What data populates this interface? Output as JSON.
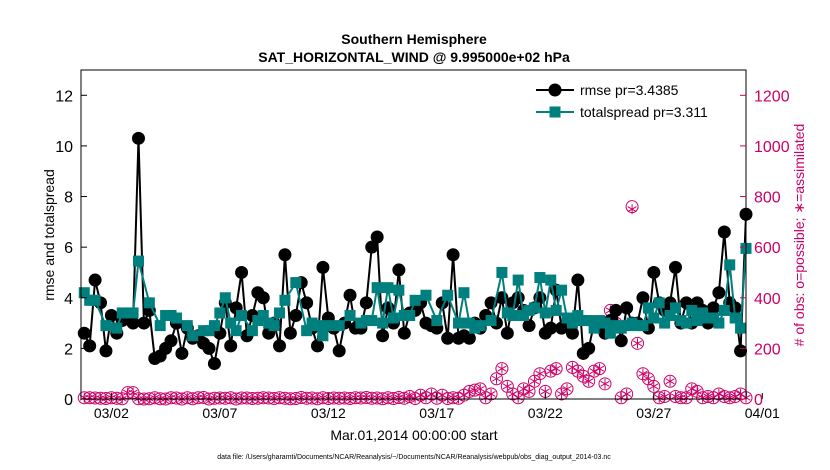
{
  "chart_data": {
    "type": "line",
    "title": "Southern Hemisphere",
    "subtitle": "SAT_HORIZONTAL_WIND @ 9.995000e+02 hPa",
    "xlabel": "Mar.01,2014 00:00:00 start",
    "ylabel_left": "rmse and totalspread",
    "ylabel_right": "# of obs: o=possible; ∗=assimilated",
    "footnote": "data file: /Users/gharamti/Documents/NCAR/Reanalysis/~/Documents/NCAR/Reanalysis/webpub/obs_diag_output_2014-03.nc",
    "xlim": [
      0.6,
      31.25
    ],
    "ylim_left": [
      0,
      13
    ],
    "ylim_right": [
      0,
      1300
    ],
    "xticks": [
      {
        "pos": 2,
        "label": "03/02"
      },
      {
        "pos": 7,
        "label": "03/07"
      },
      {
        "pos": 12,
        "label": "03/12"
      },
      {
        "pos": 17,
        "label": "03/17"
      },
      {
        "pos": 22,
        "label": "03/22"
      },
      {
        "pos": 27,
        "label": "03/27"
      },
      {
        "pos": 32,
        "label": "04/01"
      }
    ],
    "yticks_left": [
      0,
      2,
      4,
      6,
      8,
      10,
      12
    ],
    "yticks_right": [
      0,
      200,
      400,
      600,
      800,
      1000,
      1200
    ],
    "grid": false,
    "legend_position": "top-right",
    "colors": {
      "rmse": "#000000",
      "totalspread": "#007f7f",
      "obs": "#cc0066"
    },
    "series": [
      {
        "name": "rmse pr=3.4385",
        "marker": "circle",
        "axis": "left",
        "x": [
          0.75,
          1.0,
          1.25,
          1.5,
          1.75,
          2.0,
          2.25,
          2.5,
          2.75,
          3.0,
          3.25,
          3.5,
          3.75,
          4.0,
          4.25,
          4.5,
          4.75,
          5.0,
          5.25,
          5.5,
          5.75,
          6.0,
          6.25,
          6.5,
          6.75,
          7.0,
          7.25,
          7.5,
          7.75,
          8.0,
          8.25,
          8.5,
          8.75,
          9.0,
          9.25,
          9.5,
          9.75,
          10.0,
          10.25,
          10.5,
          10.75,
          11.0,
          11.25,
          11.5,
          11.75,
          12.0,
          12.25,
          12.5,
          12.75,
          13.0,
          13.25,
          13.5,
          13.75,
          14.0,
          14.25,
          14.5,
          14.75,
          15.0,
          15.25,
          15.5,
          15.75,
          16.0,
          16.25,
          16.5,
          16.75,
          17.0,
          17.25,
          17.5,
          17.75,
          18.0,
          18.25,
          18.5,
          18.75,
          19.0,
          19.25,
          19.5,
          19.75,
          20.0,
          20.25,
          20.5,
          20.75,
          21.0,
          21.25,
          21.5,
          21.75,
          22.0,
          22.25,
          22.5,
          22.75,
          23.0,
          23.25,
          23.5,
          23.75,
          24.0,
          24.25,
          24.5,
          24.75,
          25.0,
          25.25,
          25.5,
          25.75,
          26.0,
          26.25,
          26.5,
          26.75,
          27.0,
          27.25,
          27.5,
          27.75,
          28.0,
          28.25,
          28.5,
          28.75,
          29.0,
          29.25,
          29.5,
          29.75,
          30.0,
          30.25,
          30.5,
          30.75,
          31.0,
          31.25
        ],
        "y": [
          2.6,
          2.1,
          4.7,
          3.8,
          1.9,
          3.3,
          2.6,
          3.1,
          3.3,
          3.0,
          10.3,
          3.0,
          3.5,
          1.6,
          1.7,
          2.0,
          2.3,
          3.0,
          1.8,
          2.8,
          2.4,
          2.5,
          2.2,
          2.0,
          1.4,
          2.6,
          3.8,
          2.1,
          3.6,
          5.0,
          2.5,
          3.3,
          4.2,
          4.0,
          2.6,
          3.0,
          2.1,
          5.7,
          2.6,
          3.3,
          4.6,
          3.8,
          2.8,
          2.1,
          5.2,
          3.2,
          2.8,
          1.9,
          3.0,
          4.1,
          2.8,
          2.8,
          3.8,
          6.0,
          6.4,
          2.5,
          3.6,
          3.0,
          5.1,
          2.6,
          3.4,
          3.5,
          3.8,
          3.0,
          2.9,
          2.8,
          3.8,
          2.4,
          5.7,
          2.4,
          2.5,
          2.4,
          3.0,
          2.8,
          3.3,
          3.8,
          3.0,
          4.0,
          2.6,
          3.8,
          4.0,
          3.5,
          2.9,
          3.6,
          4.0,
          2.6,
          2.8,
          4.3,
          2.8,
          3.0,
          2.6,
          4.7,
          1.8,
          2.0,
          3.0,
          3.0,
          2.6,
          3.1,
          3.5,
          2.3,
          3.6,
          3.0,
          3.0,
          4.0,
          2.8,
          5.0,
          3.8,
          3.5,
          3.8,
          5.2,
          3.0,
          3.8,
          3.0,
          3.8,
          3.5,
          3.0,
          3.6,
          4.2,
          6.6,
          3.8,
          3.6,
          1.9,
          7.3
        ]
      },
      {
        "name": "totalspread pr=3.311",
        "marker": "square",
        "axis": "left",
        "x": [
          0.75,
          1.0,
          1.25,
          1.75,
          2.25,
          2.5,
          2.75,
          3.0,
          3.25,
          3.75,
          4.25,
          4.5,
          4.75,
          5.0,
          5.5,
          5.75,
          6.25,
          6.5,
          6.75,
          7.0,
          7.25,
          7.5,
          7.75,
          8.0,
          8.5,
          8.75,
          9.0,
          9.25,
          9.5,
          9.75,
          10.0,
          10.5,
          11.0,
          11.25,
          11.5,
          11.75,
          12.0,
          12.5,
          13.0,
          13.5,
          13.75,
          14.0,
          14.25,
          14.5,
          14.75,
          15.0,
          15.25,
          15.5,
          15.75,
          16.0,
          16.5,
          17.0,
          17.5,
          18.0,
          18.25,
          18.5,
          18.75,
          19.0,
          19.5,
          20.0,
          20.25,
          20.5,
          20.75,
          21.0,
          21.25,
          21.5,
          21.75,
          22.0,
          22.25,
          22.5,
          22.75,
          23.0,
          23.25,
          23.5,
          23.75,
          24.0,
          24.25,
          24.5,
          24.75,
          25.0,
          25.25,
          25.5,
          25.75,
          26.0,
          26.25,
          26.5,
          26.75,
          27.0,
          27.25,
          27.5,
          27.75,
          28.0,
          28.25,
          28.5,
          28.75,
          29.0,
          29.25,
          29.5,
          29.75,
          30.0,
          30.25,
          30.5,
          30.75,
          31.0,
          31.25
        ],
        "y": [
          4.2,
          3.9,
          3.9,
          2.9,
          2.8,
          3.4,
          3.4,
          3.4,
          5.45,
          3.8,
          2.9,
          3.3,
          3.3,
          3.2,
          2.9,
          2.5,
          2.7,
          2.7,
          2.9,
          3.4,
          4.0,
          3.0,
          2.7,
          3.3,
          2.7,
          3.1,
          3.3,
          3.0,
          2.9,
          3.4,
          3.9,
          4.6,
          2.7,
          3.0,
          2.9,
          2.5,
          2.9,
          2.9,
          3.3,
          3.0,
          3.1,
          3.1,
          4.4,
          3.0,
          4.4,
          3.2,
          4.3,
          3.3,
          3.3,
          3.9,
          4.1,
          3.1,
          4.1,
          3.0,
          4.2,
          3.0,
          2.8,
          2.9,
          3.1,
          5.0,
          3.4,
          3.3,
          4.7,
          3.3,
          3.5,
          3.6,
          4.8,
          3.4,
          4.7,
          3.5,
          4.3,
          3.2,
          3.0,
          3.3,
          3.1,
          3.1,
          2.8,
          3.1,
          3.0,
          2.6,
          2.9,
          2.8,
          2.9,
          3.0,
          2.9,
          2.9,
          3.6,
          3.2,
          3.8,
          3.0,
          3.3,
          3.6,
          3.1,
          3.0,
          3.5,
          3.1,
          3.4,
          3.2,
          3.2,
          3.0,
          3.5,
          5.3,
          3.2,
          2.8,
          5.95
        ]
      },
      {
        "name": "possible",
        "marker": "circle-open",
        "axis": "right",
        "x": [
          0.75,
          1.0,
          1.25,
          1.5,
          1.75,
          2.0,
          2.25,
          2.5,
          2.75,
          3.0,
          3.25,
          3.5,
          3.75,
          4.0,
          4.25,
          4.5,
          4.75,
          5.0,
          5.25,
          5.5,
          5.75,
          6.0,
          6.25,
          6.5,
          6.75,
          7.0,
          7.25,
          7.5,
          7.75,
          8.0,
          8.25,
          8.5,
          8.75,
          9.0,
          9.25,
          9.5,
          9.75,
          10.0,
          10.25,
          10.5,
          10.75,
          11.0,
          11.25,
          11.5,
          11.75,
          12.0,
          12.25,
          12.5,
          12.75,
          13.0,
          13.25,
          13.5,
          13.75,
          14.0,
          14.25,
          14.5,
          14.75,
          15.0,
          15.25,
          15.5,
          15.75,
          16.0,
          16.25,
          16.5,
          16.75,
          17.0,
          17.25,
          17.5,
          17.75,
          18.0,
          18.25,
          18.5,
          18.75,
          19.0,
          19.25,
          19.5,
          19.75,
          20.0,
          20.25,
          20.5,
          20.75,
          21.0,
          21.25,
          21.5,
          21.75,
          22.0,
          22.25,
          22.5,
          22.75,
          23.0,
          23.25,
          23.5,
          23.75,
          24.0,
          24.25,
          24.5,
          24.75,
          25.0,
          25.25,
          25.5,
          25.75,
          26.0,
          26.25,
          26.5,
          26.75,
          27.0,
          27.25,
          27.5,
          27.75,
          28.0,
          28.25,
          28.5,
          28.75,
          29.0,
          29.25,
          29.5,
          29.75,
          30.0,
          30.25,
          30.5,
          30.75,
          31.0,
          31.25
        ],
        "y": [
          5,
          5,
          4,
          3,
          2,
          5,
          3,
          1,
          25,
          25,
          1,
          0,
          1,
          5,
          1,
          0,
          5,
          4,
          0,
          5,
          1,
          5,
          6,
          0,
          3,
          4,
          3,
          5,
          0,
          4,
          4,
          2,
          3,
          5,
          4,
          2,
          5,
          3,
          1,
          2,
          6,
          3,
          4,
          1,
          5,
          2,
          4,
          3,
          4,
          2,
          5,
          4,
          6,
          3,
          4,
          1,
          5,
          2,
          6,
          3,
          10,
          2,
          15,
          5,
          20,
          3,
          15,
          2,
          5,
          3,
          15,
          30,
          35,
          40,
          5,
          20,
          80,
          120,
          50,
          20,
          5,
          40,
          30,
          70,
          100,
          30,
          110,
          120,
          20,
          40,
          125,
          110,
          90,
          70,
          110,
          120,
          60,
          350,
          300,
          5,
          20,
          760,
          220,
          100,
          80,
          50,
          5,
          10,
          70,
          10,
          5,
          5,
          40,
          30,
          5,
          10,
          5,
          20,
          10,
          5,
          10,
          20,
          5
        ]
      },
      {
        "name": "assimilated",
        "marker": "star",
        "axis": "right",
        "x": [
          0.75,
          1.0,
          1.25,
          1.5,
          1.75,
          2.0,
          2.25,
          2.5,
          2.75,
          3.0,
          3.25,
          3.5,
          3.75,
          4.0,
          4.25,
          4.5,
          4.75,
          5.0,
          5.25,
          5.5,
          5.75,
          6.0,
          6.25,
          6.5,
          6.75,
          7.0,
          7.25,
          7.5,
          7.75,
          8.0,
          8.25,
          8.5,
          8.75,
          9.0,
          9.25,
          9.5,
          9.75,
          10.0,
          10.25,
          10.5,
          10.75,
          11.0,
          11.25,
          11.5,
          11.75,
          12.0,
          12.25,
          12.5,
          12.75,
          13.0,
          13.25,
          13.5,
          13.75,
          14.0,
          14.25,
          14.5,
          14.75,
          15.0,
          15.25,
          15.5,
          15.75,
          16.0,
          16.25,
          16.5,
          16.75,
          17.0,
          17.25,
          17.5,
          17.75,
          18.0,
          18.25,
          18.5,
          18.75,
          19.0,
          19.25,
          19.5,
          19.75,
          20.0,
          20.25,
          20.5,
          20.75,
          21.0,
          21.25,
          21.5,
          21.75,
          22.0,
          22.25,
          22.5,
          22.75,
          23.0,
          23.25,
          23.5,
          23.75,
          24.0,
          24.25,
          24.5,
          24.75,
          25.0,
          25.25,
          25.5,
          25.75,
          26.0,
          26.25,
          26.5,
          26.75,
          27.0,
          27.25,
          27.5,
          27.75,
          28.0,
          28.25,
          28.5,
          28.75,
          29.0,
          29.25,
          29.5,
          29.75,
          30.0,
          30.25,
          30.5,
          30.75,
          31.0,
          31.25
        ],
        "y": [
          5,
          5,
          4,
          3,
          2,
          5,
          3,
          1,
          25,
          25,
          1,
          0,
          1,
          5,
          1,
          0,
          5,
          4,
          0,
          5,
          1,
          5,
          6,
          0,
          3,
          4,
          3,
          5,
          0,
          4,
          4,
          2,
          3,
          5,
          4,
          2,
          5,
          3,
          1,
          2,
          6,
          3,
          4,
          1,
          5,
          2,
          4,
          3,
          4,
          2,
          5,
          4,
          6,
          3,
          4,
          1,
          5,
          2,
          6,
          3,
          10,
          2,
          15,
          5,
          20,
          3,
          15,
          2,
          5,
          3,
          15,
          30,
          35,
          40,
          5,
          20,
          80,
          120,
          50,
          20,
          5,
          40,
          30,
          70,
          100,
          30,
          110,
          120,
          20,
          40,
          125,
          110,
          90,
          70,
          110,
          120,
          60,
          350,
          300,
          5,
          20,
          750,
          220,
          100,
          80,
          50,
          5,
          10,
          70,
          10,
          5,
          5,
          40,
          30,
          5,
          10,
          5,
          20,
          10,
          5,
          10,
          20,
          5
        ]
      }
    ]
  }
}
